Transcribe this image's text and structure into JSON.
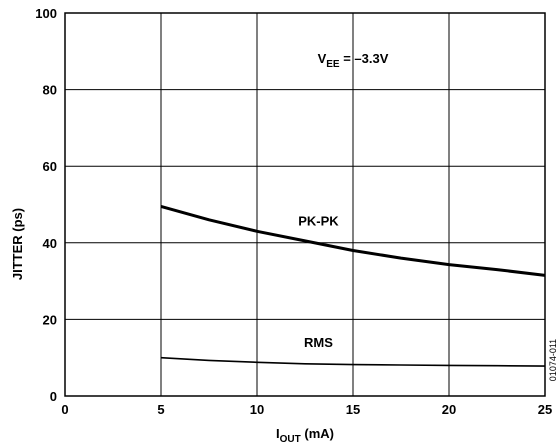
{
  "chart_data": {
    "type": "line",
    "xlabel": {
      "main": "I",
      "sub": "OUT",
      "rest": " (mA)"
    },
    "ylabel": "JITTER (ps)",
    "xlim": [
      0,
      25
    ],
    "ylim": [
      0,
      100
    ],
    "x_ticks": [
      0,
      5,
      10,
      15,
      20,
      25
    ],
    "y_ticks": [
      0,
      20,
      40,
      60,
      80,
      100
    ],
    "x_tick_labels": [
      "0",
      "5",
      "10",
      "15",
      "20",
      "25"
    ],
    "y_tick_labels": [
      "0",
      "20",
      "40",
      "60",
      "80",
      "100"
    ],
    "grid": true,
    "annotation": {
      "main": "V",
      "sub": "EE",
      "rest": " = –3.3V"
    },
    "figure_id": "01074-011",
    "series": [
      {
        "name": "PK-PK",
        "x": [
          5,
          7.5,
          10,
          12.5,
          15,
          17.5,
          20,
          22.5,
          25
        ],
        "y": [
          49.5,
          46,
          43,
          40.5,
          38,
          36,
          34.3,
          33,
          31.5
        ]
      },
      {
        "name": "RMS",
        "x": [
          5,
          7.5,
          10,
          12.5,
          15,
          17.5,
          20,
          22.5,
          25
        ],
        "y": [
          10,
          9.3,
          8.8,
          8.4,
          8.2,
          8.1,
          8,
          7.9,
          7.8
        ]
      }
    ],
    "series_label_positions": [
      {
        "name": "PK-PK",
        "x": 13.2,
        "y": 44.5
      },
      {
        "name": "RMS",
        "x": 13.2,
        "y": 12.8
      }
    ],
    "annotation_position": {
      "x": 15,
      "y": 87
    }
  }
}
